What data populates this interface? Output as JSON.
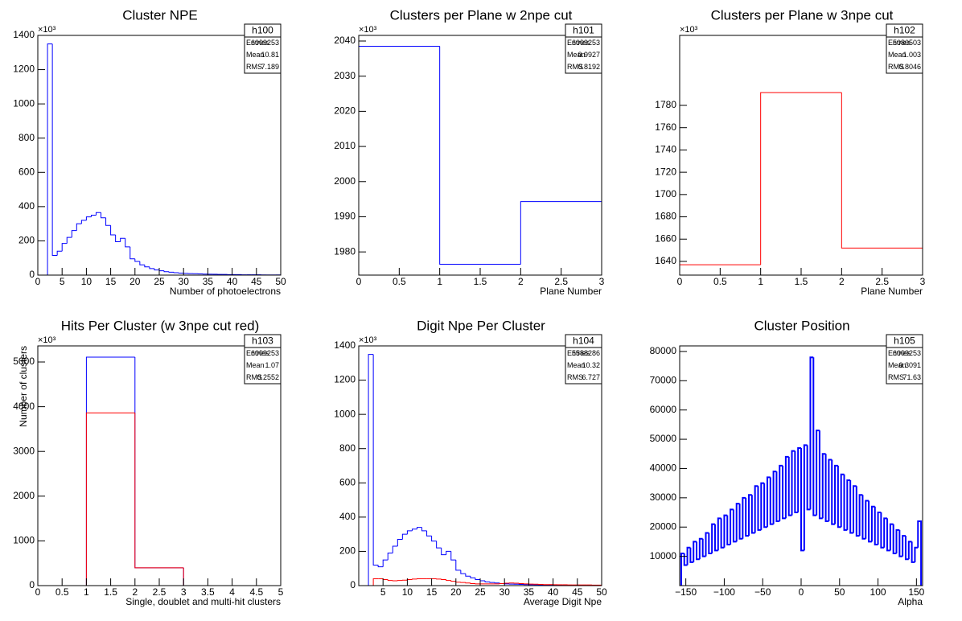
{
  "chart_data": [
    {
      "type": "histogram",
      "title": "Cluster NPE",
      "x_label": "Number of photoelectrons",
      "y_exponent": "×10³",
      "bins": [
        0,
        1,
        2,
        3,
        4,
        5,
        6,
        7,
        8,
        9,
        10,
        11,
        12,
        13,
        14,
        15,
        16,
        17,
        18,
        19,
        20,
        21,
        22,
        23,
        24,
        25,
        26,
        27,
        28,
        29,
        30,
        31,
        32,
        33,
        34,
        35,
        36,
        37,
        38,
        39,
        40,
        41,
        42,
        43,
        44,
        45,
        46,
        47,
        48,
        49,
        50
      ],
      "series": [
        {
          "color": "#0000ff",
          "values": [
            0,
            0,
            1350,
            115,
            140,
            185,
            220,
            260,
            300,
            320,
            340,
            350,
            365,
            335,
            290,
            235,
            195,
            215,
            165,
            95,
            80,
            60,
            48,
            38,
            30,
            25,
            20,
            17,
            14,
            12,
            10,
            9,
            8,
            7,
            6,
            5,
            5,
            4,
            4,
            3,
            3,
            3,
            2,
            2,
            2,
            2,
            1,
            1,
            1,
            1
          ]
        }
      ],
      "xlim": [
        0,
        50
      ],
      "xticks": [
        0,
        5,
        10,
        15,
        20,
        25,
        30,
        35,
        40,
        45,
        50
      ],
      "ylim": [
        0,
        1400
      ],
      "yticks": [
        0,
        200,
        400,
        600,
        800,
        1000,
        1200,
        1400
      ],
      "stats": {
        "name": "h100",
        "rows": [
          {
            "label": "Entries",
            "value": 6009253
          },
          {
            "label": "Mean",
            "value": 10.81
          },
          {
            "label": "RMS",
            "value": 7.189
          }
        ]
      }
    },
    {
      "type": "histogram",
      "title": "Clusters per Plane w 2npe cut",
      "x_label": "Plane Number",
      "y_exponent": "×10³",
      "bins": [
        0,
        1,
        2,
        3
      ],
      "series": [
        {
          "color": "#0000ff",
          "values": [
            2038.5,
            1976.5,
            1994.3
          ]
        }
      ],
      "xlim": [
        0,
        3
      ],
      "xticks": [
        0,
        0.5,
        1,
        1.5,
        2,
        2.5,
        3
      ],
      "ylim": [
        1973.4,
        2041.6
      ],
      "yticks": [
        1980,
        1990,
        2000,
        2010,
        2020,
        2030,
        2040
      ],
      "stats": {
        "name": "h101",
        "rows": [
          {
            "label": "Entries",
            "value": 6009253
          },
          {
            "label": "Mean",
            "value": 0.9927
          },
          {
            "label": "RMS",
            "value": 0.8192
          }
        ]
      }
    },
    {
      "type": "histogram",
      "title": "Clusters per Plane w 3npe cut",
      "x_label": "Plane Number",
      "y_exponent": "×10³",
      "bins": [
        0,
        1,
        2,
        3
      ],
      "series": [
        {
          "color": "#ff0000",
          "values": [
            1637,
            1791.5,
            1652
          ]
        }
      ],
      "xlim": [
        0,
        3
      ],
      "xticks": [
        0,
        0.5,
        1,
        1.5,
        2,
        2.5,
        3
      ],
      "ylim": [
        1627.7,
        1842.8
      ],
      "yticks": [
        1640,
        1660,
        1680,
        1700,
        1720,
        1740,
        1760,
        1780
      ],
      "stats": {
        "name": "h102",
        "rows": [
          {
            "label": "Entries",
            "value": 5080503
          },
          {
            "label": "Mean",
            "value": 1.003
          },
          {
            "label": "RMS",
            "value": 0.8046
          }
        ]
      }
    },
    {
      "type": "histogram",
      "title": "Hits Per Cluster (w 3npe cut red)",
      "x_label": "Single, doublet and multi-hit clusters",
      "y_label": "Number of clusters",
      "y_exponent": "×10³",
      "bins": [
        0,
        1,
        2,
        3,
        4,
        5
      ],
      "series": [
        {
          "color": "#0000ff",
          "values": [
            0,
            5108,
            397,
            0,
            0
          ]
        },
        {
          "color": "#ff0000",
          "values": [
            0,
            3863,
            397,
            0,
            0
          ]
        }
      ],
      "xlim": [
        0,
        5
      ],
      "xticks": [
        0,
        0.5,
        1,
        1.5,
        2,
        2.5,
        3,
        3.5,
        4,
        4.5,
        5
      ],
      "ylim": [
        0,
        5360
      ],
      "yticks": [
        0,
        1000,
        2000,
        3000,
        4000,
        5000
      ],
      "stats": {
        "name": "h103",
        "rows": [
          {
            "label": "Entries",
            "value": 6009253
          },
          {
            "label": "Mean",
            "value": 1.07
          },
          {
            "label": "RMS",
            "value": 0.2552
          }
        ]
      }
    },
    {
      "type": "histogram",
      "title": "Digit Npe Per Cluster",
      "x_label": "Average Digit Npe",
      "y_exponent": "×10³",
      "bins": [
        0,
        1,
        2,
        3,
        4,
        5,
        6,
        7,
        8,
        9,
        10,
        11,
        12,
        13,
        14,
        15,
        16,
        17,
        18,
        19,
        20,
        21,
        22,
        23,
        24,
        25,
        26,
        27,
        28,
        29,
        30,
        31,
        32,
        33,
        34,
        35,
        36,
        37,
        38,
        39,
        40,
        41,
        42,
        43,
        44,
        45,
        46,
        47,
        48,
        49,
        50
      ],
      "series": [
        {
          "color": "#0000ff",
          "values": [
            0,
            0,
            1350,
            120,
            110,
            150,
            190,
            230,
            270,
            300,
            320,
            330,
            340,
            320,
            290,
            260,
            220,
            180,
            200,
            150,
            90,
            70,
            55,
            45,
            35,
            28,
            22,
            18,
            15,
            12,
            10,
            9,
            8,
            7,
            6,
            5,
            5,
            4,
            4,
            3,
            3,
            3,
            2,
            2,
            2,
            2,
            1,
            1,
            1,
            1
          ]
        },
        {
          "color": "#ff0000",
          "values": [
            0,
            0,
            0,
            40,
            40,
            35,
            30,
            28,
            30,
            32,
            35,
            38,
            40,
            40,
            40,
            40,
            38,
            35,
            30,
            25,
            20,
            18,
            15,
            12,
            10,
            10,
            10,
            10,
            10,
            12,
            14,
            15,
            14,
            12,
            10,
            9,
            8,
            7,
            6,
            6,
            5,
            5,
            5,
            4,
            4,
            4,
            4,
            4,
            3,
            3
          ]
        }
      ],
      "xlim": [
        0,
        50
      ],
      "xticks": [
        5,
        10,
        15,
        20,
        25,
        30,
        35,
        40,
        45,
        50
      ],
      "ylim": [
        0,
        1400
      ],
      "yticks": [
        0,
        200,
        400,
        600,
        800,
        1000,
        1200,
        1400
      ],
      "stats": {
        "name": "h104",
        "rows": [
          {
            "label": "Entries",
            "value": 5588286
          },
          {
            "label": "Mean",
            "value": 10.32
          },
          {
            "label": "RMS",
            "value": 6.727
          }
        ]
      }
    },
    {
      "type": "histogram",
      "title": "Cluster Position",
      "x_label": "Alpha",
      "line_width": 2,
      "bins": [
        -156,
        -152,
        -148,
        -144,
        -140,
        -136,
        -132,
        -128,
        -124,
        -120,
        -116,
        -112,
        -108,
        -104,
        -100,
        -96,
        -92,
        -88,
        -84,
        -80,
        -76,
        -72,
        -68,
        -64,
        -60,
        -56,
        -52,
        -48,
        -44,
        -40,
        -36,
        -32,
        -28,
        -24,
        -20,
        -16,
        -12,
        -8,
        -4,
        0,
        4,
        8,
        12,
        16,
        20,
        24,
        28,
        32,
        36,
        40,
        44,
        48,
        52,
        56,
        60,
        64,
        68,
        72,
        76,
        80,
        84,
        88,
        92,
        96,
        100,
        104,
        108,
        112,
        116,
        120,
        124,
        128,
        132,
        136,
        140,
        144,
        148,
        152,
        156
      ],
      "series": [
        {
          "color": "#0000ff",
          "values": [
            11000,
            7000,
            13000,
            8000,
            15000,
            9000,
            16000,
            10000,
            18000,
            11000,
            21000,
            12000,
            23000,
            13000,
            24000,
            14000,
            26000,
            15000,
            28000,
            16000,
            30000,
            17000,
            31000,
            18000,
            34000,
            19000,
            35000,
            20000,
            37000,
            21000,
            39000,
            22000,
            41000,
            23000,
            44000,
            24000,
            46000,
            25000,
            47000,
            12000,
            48000,
            26000,
            78000,
            24000,
            53000,
            23000,
            45000,
            22000,
            43000,
            21000,
            41000,
            20000,
            38000,
            19000,
            36000,
            18000,
            34000,
            17000,
            31000,
            16000,
            29000,
            15000,
            27000,
            14000,
            25000,
            13000,
            23000,
            12000,
            21000,
            11000,
            19000,
            10000,
            17000,
            9000,
            15000,
            8000,
            13000,
            22000
          ]
        }
      ],
      "xlim": [
        -158,
        158
      ],
      "xticks": [
        {
          "value": -150,
          "label": "−150"
        },
        {
          "value": -100,
          "label": "−100"
        },
        {
          "value": -50,
          "label": "−50"
        },
        0,
        50,
        100,
        150
      ],
      "ylim": [
        0,
        81900
      ],
      "yticks": [
        10000,
        20000,
        30000,
        40000,
        50000,
        60000,
        70000,
        80000
      ],
      "stats": {
        "name": "h105",
        "rows": [
          {
            "label": "Entries",
            "value": 6009253
          },
          {
            "label": "Mean",
            "value": 0.3091
          },
          {
            "label": "RMS",
            "value": 71.63
          }
        ]
      }
    }
  ]
}
